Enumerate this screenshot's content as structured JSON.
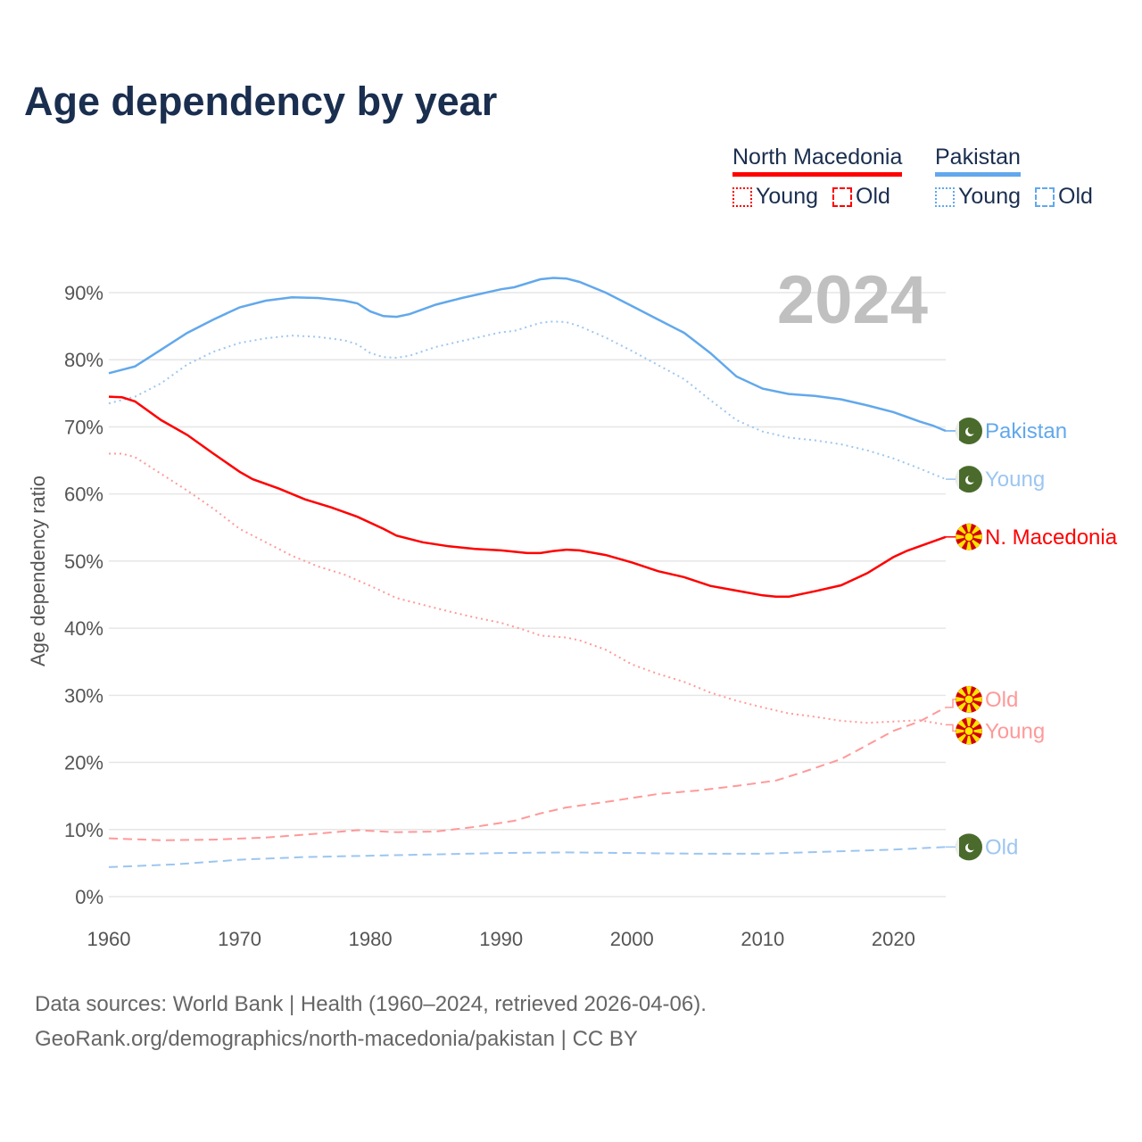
{
  "title": "Age dependency by year",
  "legend": {
    "groups": [
      {
        "name": "North Macedonia",
        "color": "#ff0000",
        "light": "#ff9999",
        "young": "Young",
        "old": "Old"
      },
      {
        "name": "Pakistan",
        "color": "#62a8ec",
        "light": "#9cc6f0",
        "young": "Young",
        "old": "Old"
      }
    ]
  },
  "footer": {
    "line1": "Data sources: World Bank | Health (1960–2024, retrieved 2026-04-06).",
    "line2": "GeoRank.org/demographics/north-macedonia/pakistan | CC BY"
  },
  "chart_data": {
    "type": "line",
    "title": "Age dependency by year",
    "year_watermark": "2024",
    "xlabel": "",
    "ylabel": "Age dependency ratio",
    "xlim": [
      1960,
      2024
    ],
    "ylim": [
      0,
      90
    ],
    "x_ticks": [
      "1960",
      "1970",
      "1980",
      "1990",
      "2000",
      "2010",
      "2020"
    ],
    "y_ticks": [
      0,
      10,
      20,
      30,
      40,
      50,
      60,
      70,
      80,
      90
    ],
    "y_tick_labels": [
      "0%",
      "10%",
      "20%",
      "30%",
      "40%",
      "50%",
      "60%",
      "70%",
      "80%",
      "90%"
    ],
    "grid": true,
    "legend_position": "top-right",
    "series": [
      {
        "name": "Pakistan",
        "end_label": "Pakistan",
        "country": "pakistan",
        "style": "solid",
        "color": "#62a8ec",
        "points": [
          [
            1960,
            78
          ],
          [
            1962,
            79
          ],
          [
            1964,
            81.5
          ],
          [
            1966,
            84
          ],
          [
            1968,
            86
          ],
          [
            1970,
            87.8
          ],
          [
            1972,
            88.8
          ],
          [
            1974,
            89.3
          ],
          [
            1976,
            89.2
          ],
          [
            1978,
            88.8
          ],
          [
            1979,
            88.4
          ],
          [
            1980,
            87.2
          ],
          [
            1981,
            86.5
          ],
          [
            1982,
            86.4
          ],
          [
            1983,
            86.8
          ],
          [
            1985,
            88.2
          ],
          [
            1987,
            89.2
          ],
          [
            1990,
            90.5
          ],
          [
            1991,
            90.8
          ],
          [
            1993,
            92
          ],
          [
            1994,
            92.2
          ],
          [
            1995,
            92.1
          ],
          [
            1996,
            91.6
          ],
          [
            1998,
            90
          ],
          [
            2000,
            88
          ],
          [
            2002,
            86
          ],
          [
            2004,
            84
          ],
          [
            2006,
            81
          ],
          [
            2008,
            77.5
          ],
          [
            2010,
            75.7
          ],
          [
            2012,
            74.9
          ],
          [
            2014,
            74.6
          ],
          [
            2016,
            74.1
          ],
          [
            2018,
            73.2
          ],
          [
            2020,
            72.2
          ],
          [
            2022,
            70.8
          ],
          [
            2023,
            70.2
          ],
          [
            2024,
            69.4
          ]
        ]
      },
      {
        "name": "Pakistan Young",
        "end_label": "Young",
        "country": "pakistan",
        "style": "dotted",
        "color": "#9cc6f0",
        "points": [
          [
            1960,
            73.5
          ],
          [
            1962,
            74.5
          ],
          [
            1964,
            76.5
          ],
          [
            1966,
            79.3
          ],
          [
            1968,
            81.2
          ],
          [
            1970,
            82.5
          ],
          [
            1972,
            83.2
          ],
          [
            1974,
            83.6
          ],
          [
            1976,
            83.4
          ],
          [
            1978,
            82.9
          ],
          [
            1979,
            82.3
          ],
          [
            1980,
            81
          ],
          [
            1981,
            80.4
          ],
          [
            1982,
            80.3
          ],
          [
            1983,
            80.6
          ],
          [
            1985,
            81.9
          ],
          [
            1987,
            82.8
          ],
          [
            1990,
            84.1
          ],
          [
            1991,
            84.3
          ],
          [
            1993,
            85.5
          ],
          [
            1994,
            85.7
          ],
          [
            1995,
            85.6
          ],
          [
            1996,
            85
          ],
          [
            1998,
            83.3
          ],
          [
            2000,
            81.3
          ],
          [
            2002,
            79.2
          ],
          [
            2004,
            77.1
          ],
          [
            2006,
            74
          ],
          [
            2008,
            71
          ],
          [
            2010,
            69.3
          ],
          [
            2012,
            68.4
          ],
          [
            2014,
            68
          ],
          [
            2016,
            67.4
          ],
          [
            2018,
            66.5
          ],
          [
            2020,
            65.3
          ],
          [
            2022,
            63.8
          ],
          [
            2024,
            62.2
          ]
        ]
      },
      {
        "name": "North Macedonia",
        "end_label": "N. Macedonia",
        "country": "north-macedonia",
        "style": "solid",
        "color": "#ff0000",
        "points": [
          [
            1960,
            74.5
          ],
          [
            1961,
            74.4
          ],
          [
            1962,
            73.8
          ],
          [
            1964,
            71
          ],
          [
            1966,
            68.8
          ],
          [
            1968,
            66
          ],
          [
            1970,
            63.3
          ],
          [
            1971,
            62.2
          ],
          [
            1973,
            60.8
          ],
          [
            1975,
            59.2
          ],
          [
            1977,
            58
          ],
          [
            1979,
            56.6
          ],
          [
            1981,
            54.8
          ],
          [
            1982,
            53.8
          ],
          [
            1984,
            52.8
          ],
          [
            1986,
            52.2
          ],
          [
            1988,
            51.8
          ],
          [
            1990,
            51.6
          ],
          [
            1992,
            51.2
          ],
          [
            1993,
            51.2
          ],
          [
            1994,
            51.5
          ],
          [
            1995,
            51.7
          ],
          [
            1996,
            51.6
          ],
          [
            1998,
            50.9
          ],
          [
            2000,
            49.8
          ],
          [
            2002,
            48.5
          ],
          [
            2004,
            47.6
          ],
          [
            2006,
            46.3
          ],
          [
            2008,
            45.6
          ],
          [
            2010,
            44.9
          ],
          [
            2011,
            44.7
          ],
          [
            2012,
            44.7
          ],
          [
            2014,
            45.5
          ],
          [
            2016,
            46.4
          ],
          [
            2017,
            47.3
          ],
          [
            2018,
            48.2
          ],
          [
            2020,
            50.6
          ],
          [
            2021,
            51.5
          ],
          [
            2022,
            52.2
          ],
          [
            2024,
            53.6
          ]
        ]
      },
      {
        "name": "North Macedonia Old",
        "end_label": "Old",
        "country": "north-macedonia",
        "style": "dashed",
        "color": "#ff9999",
        "points": [
          [
            1960,
            8.7
          ],
          [
            1964,
            8.4
          ],
          [
            1968,
            8.5
          ],
          [
            1972,
            8.8
          ],
          [
            1976,
            9.4
          ],
          [
            1979,
            9.9
          ],
          [
            1982,
            9.6
          ],
          [
            1985,
            9.7
          ],
          [
            1988,
            10.4
          ],
          [
            1991,
            11.3
          ],
          [
            1993,
            12.4
          ],
          [
            1995,
            13.3
          ],
          [
            1998,
            14.1
          ],
          [
            2000,
            14.7
          ],
          [
            2002,
            15.3
          ],
          [
            2005,
            15.8
          ],
          [
            2008,
            16.5
          ],
          [
            2011,
            17.3
          ],
          [
            2013,
            18.5
          ],
          [
            2016,
            20.5
          ],
          [
            2018,
            22.6
          ],
          [
            2020,
            24.7
          ],
          [
            2022,
            26.1
          ],
          [
            2024,
            28.2
          ]
        ]
      },
      {
        "name": "North Macedonia Young",
        "end_label": "Young",
        "country": "north-macedonia",
        "style": "dotted",
        "color": "#ff9999",
        "points": [
          [
            1960,
            66
          ],
          [
            1961,
            66
          ],
          [
            1962,
            65.5
          ],
          [
            1964,
            63
          ],
          [
            1966,
            60.5
          ],
          [
            1968,
            57.8
          ],
          [
            1970,
            54.8
          ],
          [
            1972,
            52.8
          ],
          [
            1974,
            50.8
          ],
          [
            1976,
            49.2
          ],
          [
            1978,
            48
          ],
          [
            1980,
            46.3
          ],
          [
            1982,
            44.5
          ],
          [
            1984,
            43.5
          ],
          [
            1986,
            42.5
          ],
          [
            1988,
            41.6
          ],
          [
            1990,
            40.8
          ],
          [
            1992,
            39.6
          ],
          [
            1993,
            38.9
          ],
          [
            1995,
            38.6
          ],
          [
            1996,
            38.2
          ],
          [
            1998,
            36.8
          ],
          [
            2000,
            34.6
          ],
          [
            2002,
            33.2
          ],
          [
            2004,
            32
          ],
          [
            2006,
            30.4
          ],
          [
            2008,
            29.2
          ],
          [
            2010,
            28.2
          ],
          [
            2012,
            27.3
          ],
          [
            2014,
            26.8
          ],
          [
            2016,
            26.2
          ],
          [
            2018,
            25.9
          ],
          [
            2020,
            26.1
          ],
          [
            2022,
            26.3
          ],
          [
            2024,
            25.6
          ]
        ]
      },
      {
        "name": "Pakistan Old",
        "end_label": "Old",
        "country": "pakistan",
        "style": "dashed",
        "color": "#9cc6f0",
        "points": [
          [
            1960,
            4.4
          ],
          [
            1965,
            4.8
          ],
          [
            1970,
            5.5
          ],
          [
            1975,
            5.9
          ],
          [
            1980,
            6.1
          ],
          [
            1985,
            6.3
          ],
          [
            1990,
            6.5
          ],
          [
            1995,
            6.6
          ],
          [
            2000,
            6.5
          ],
          [
            2005,
            6.4
          ],
          [
            2010,
            6.4
          ],
          [
            2015,
            6.7
          ],
          [
            2020,
            7.0
          ],
          [
            2024,
            7.4
          ]
        ]
      }
    ]
  }
}
